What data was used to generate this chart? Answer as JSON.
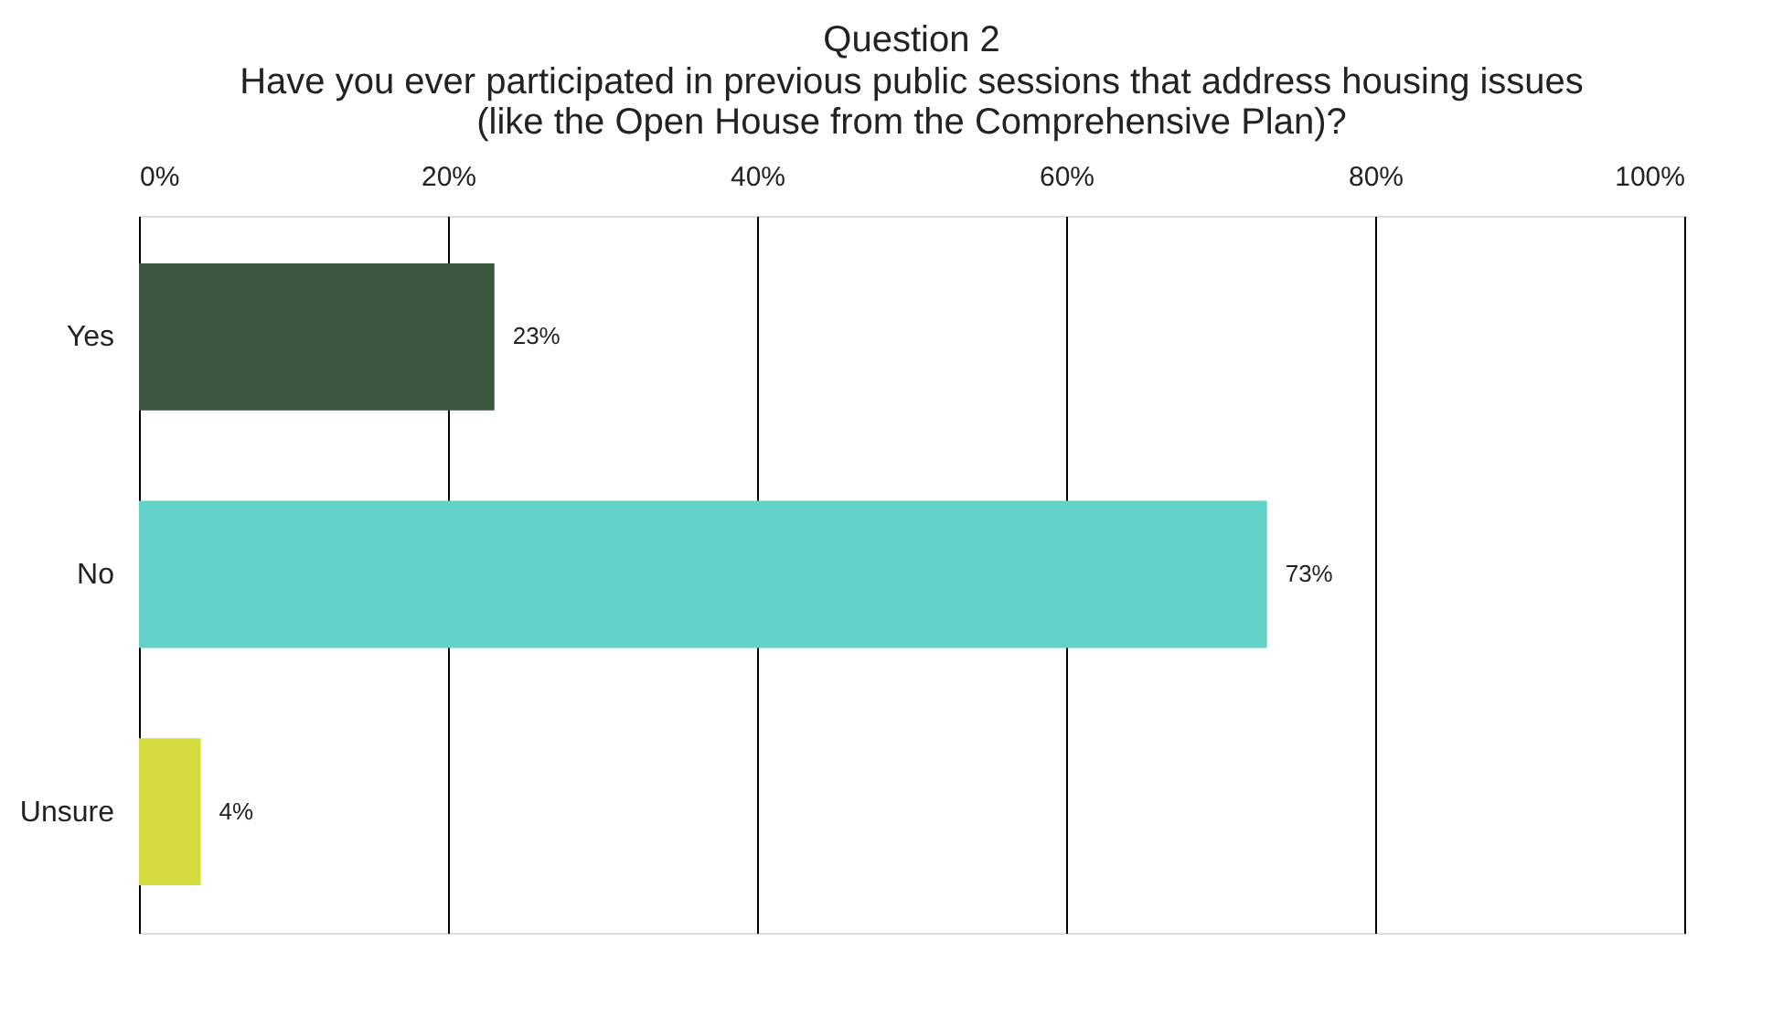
{
  "chart_data": {
    "type": "bar",
    "orientation": "horizontal",
    "title": "Question 2",
    "subtitle": "Have you ever participated in previous public sessions that address housing issues\n(like the Open House from the Comprehensive Plan)?",
    "categories": [
      "Yes",
      "No",
      "Unsure"
    ],
    "values": [
      23,
      73,
      4
    ],
    "colors": [
      "#3c5640",
      "#62d2c8",
      "#d4dc41"
    ],
    "value_labels": [
      "23%",
      "73%",
      "4%"
    ],
    "xlim": [
      0,
      100
    ],
    "xticks": [
      {
        "value": 0,
        "label": "0%"
      },
      {
        "value": 20,
        "label": "20%"
      },
      {
        "value": 40,
        "label": "40%"
      },
      {
        "value": 60,
        "label": "60%"
      },
      {
        "value": 80,
        "label": "80%"
      },
      {
        "value": 100,
        "label": "100%"
      }
    ],
    "grid": "x",
    "legend": false
  }
}
